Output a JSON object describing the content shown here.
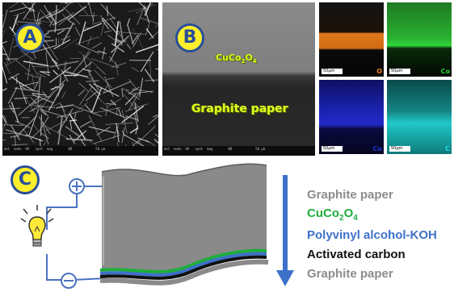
{
  "panels": {
    "a": {
      "label": "A",
      "info_text": "det  mode  HV   spot  mag        WD            50 μm"
    },
    "b": {
      "label": "B",
      "info_text": "det  mode  HV   spot  mag        WD            50 μm",
      "top_layer": {
        "base": "CuCo",
        "sub1": "2",
        "mid": "O",
        "sub2": "4"
      },
      "bottom_layer": "Graphite paper",
      "maps": [
        {
          "element": "O",
          "scale": "50μm",
          "color": "#f08020"
        },
        {
          "element": "Co",
          "scale": "50μm",
          "color": "#22d430"
        },
        {
          "element": "Cu",
          "scale": "50μm",
          "color": "#2233dd"
        },
        {
          "element": "C",
          "scale": "50μm",
          "color": "#22dddd"
        }
      ]
    },
    "c": {
      "label": "C",
      "layers": [
        {
          "text": "Graphite paper",
          "color": "#8c8c8c"
        },
        {
          "base": "CuCo",
          "sub1": "2",
          "mid": "O",
          "sub2": "4",
          "color": "#1fae3c"
        },
        {
          "text": "Polyvinyl alcohol-KOH",
          "color": "#3e71c9"
        },
        {
          "text": "Activated carbon",
          "color": "#111111"
        },
        {
          "text": "Graphite paper",
          "color": "#8c8c8c"
        }
      ]
    }
  },
  "colors": {
    "badge_fill": "#ffef2a",
    "badge_stroke": "#2a4f9a",
    "wire": "#4a72c0",
    "arrow": "#3e71c9",
    "electrode_gray": "#8a8a8a"
  },
  "icons": [
    "plus-terminal-icon",
    "minus-terminal-icon",
    "lightbulb-icon",
    "down-arrow-icon"
  ]
}
